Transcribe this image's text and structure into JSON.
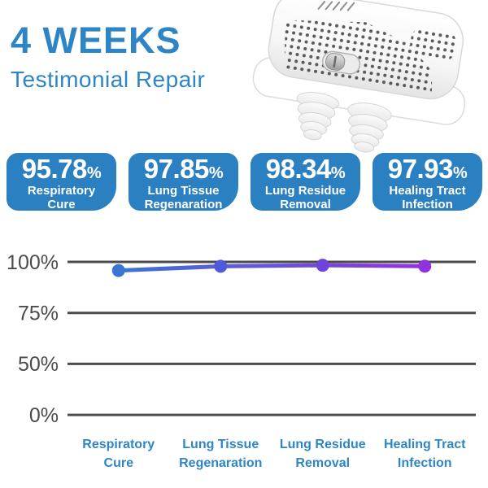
{
  "header": {
    "title": "4 WEEKS",
    "subtitle": "Testimonial Repair"
  },
  "product": {
    "label": "Anti-snoring nasal device"
  },
  "stats": [
    {
      "value": "95.78",
      "unit": "%",
      "label": "Respiratory\nCure"
    },
    {
      "value": "97.85",
      "unit": "%",
      "label": "Lung Tissue\nRegenaration"
    },
    {
      "value": "98.34",
      "unit": "%",
      "label": "Lung Residue\nRemoval"
    },
    {
      "value": "97.93",
      "unit": "%",
      "label": "Healing Tract\nInfection"
    }
  ],
  "chart_data": {
    "type": "line",
    "categories": [
      "Respiratory\nCure",
      "Lung Tissue\nRegenaration",
      "Lung Residue\nRemoval",
      "Healing Tract\nInfection"
    ],
    "values": [
      95.78,
      97.85,
      98.34,
      97.93
    ],
    "y_ticks": [
      {
        "label": "100%",
        "value": 100
      },
      {
        "label": "75%",
        "value": 75
      },
      {
        "label": "50%",
        "value": 50
      },
      {
        "label": "0%",
        "value": 0
      }
    ],
    "ylim": [
      0,
      100
    ],
    "grid": true,
    "legend_position": "none",
    "line_gradient": [
      "#3c74d4",
      "#9232de"
    ],
    "point_colors": [
      "#3c74d4",
      "#5059d8",
      "#6f44da",
      "#9232de"
    ],
    "grid_color": "#4b4b4b",
    "category_color": "#2e86c5"
  },
  "colors": {
    "accent_blue": "#2d85c5",
    "box_blue": "#2b80c2",
    "grid_gray": "#4b4b4b"
  }
}
